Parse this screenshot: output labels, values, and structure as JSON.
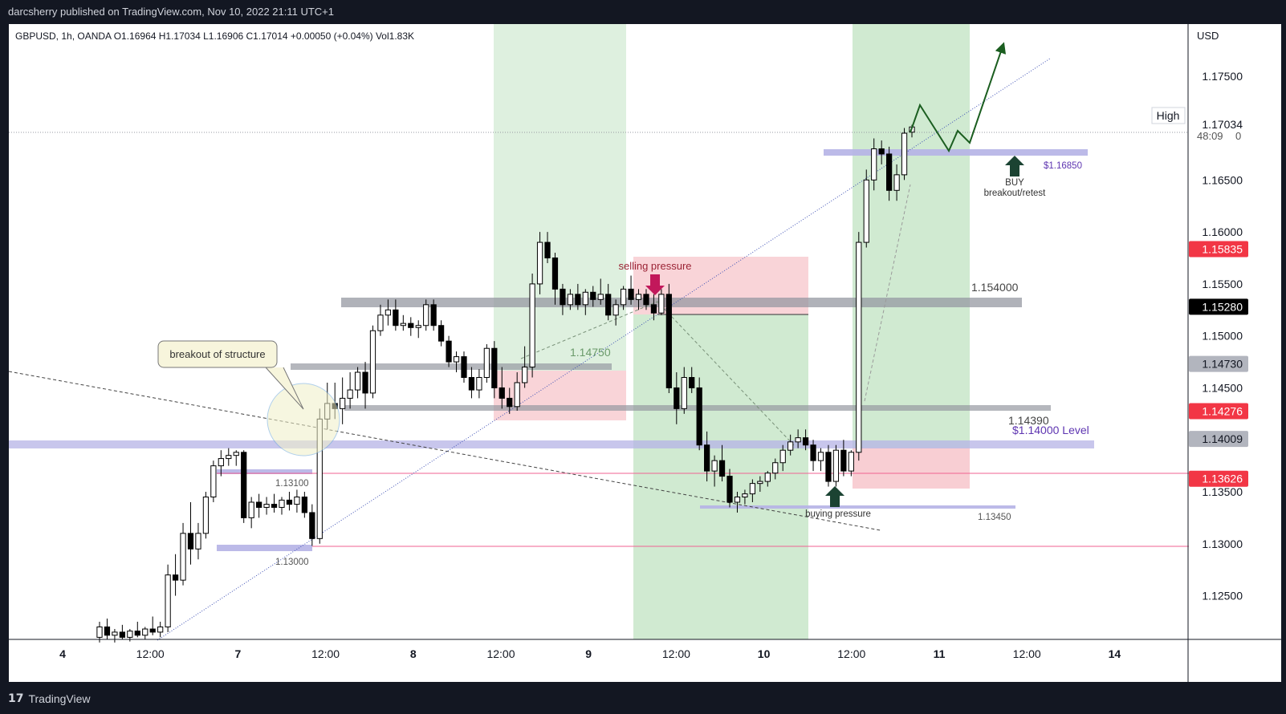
{
  "header": {
    "publisher_line": "darcsherry published on TradingView.com, Nov 10, 2022 21:11 UTC+1"
  },
  "footer": {
    "brand": "TradingView",
    "brand_mark": "17"
  },
  "symbol_info": "GBPUSD, 1h, OANDA  O1.16964  H1.17034  L1.16906  C1.17014  +0.00050 (+0.04%)  Vol1.83K",
  "axis_currency": "USD",
  "high_label": "High",
  "countdown": "48:09",
  "colors": {
    "bull": "#ffffff",
    "bear": "#000000",
    "price_red": "#f23645",
    "price_black": "#000000",
    "price_grey": "#b2b5be",
    "zone_green": "#c8e6c9",
    "zone_red": "#f7c9ce",
    "level_purple": "#b5b3e6",
    "level_grey": "#9598a1",
    "arrow": "#1b5e20"
  },
  "annotations": {
    "breakout": "breakout of structure",
    "selling": "selling pressure",
    "buying": "buying pressure",
    "buy": "BUY",
    "buy_sub": "breakout/retest",
    "lvl_1685": "$1.16850",
    "lvl_154": "1.154000",
    "lvl_1475": "1.14750",
    "lvl_1439": "1.14390",
    "lvl_1400": "$1.14000 Level",
    "lvl_1345": "1.13450",
    "lvl_1310": "1.13100",
    "lvl_1300": "1.13000"
  },
  "chart_data": {
    "type": "candlestick",
    "symbol": "GBPUSD",
    "timeframe": "1h",
    "ylim": [
      1.1208,
      1.18
    ],
    "x_ticks": [
      "4",
      "12:00",
      "7",
      "12:00",
      "8",
      "12:00",
      "9",
      "12:00",
      "10",
      "12:00",
      "11",
      "12:00",
      "14"
    ],
    "y_ticks": [
      "1.17500",
      "1.17034",
      "1.16500",
      "1.16000",
      "1.15835",
      "1.15500",
      "1.15280",
      "1.15000",
      "1.14730",
      "1.14500",
      "1.14276",
      "1.14009",
      "1.13626",
      "1.13500",
      "1.13000",
      "1.12500"
    ],
    "price_tags": [
      {
        "value": "1.17034",
        "style": "plain"
      },
      {
        "value": "1.15835",
        "style": "red"
      },
      {
        "value": "1.15280",
        "style": "black"
      },
      {
        "value": "1.14730",
        "style": "grey"
      },
      {
        "value": "1.14276",
        "style": "red"
      },
      {
        "value": "1.14009",
        "style": "grey"
      },
      {
        "value": "1.13626",
        "style": "red"
      }
    ],
    "levels": [
      1.1685,
      1.154,
      1.1475,
      1.1439,
      1.14,
      1.1345,
      1.131,
      1.13
    ],
    "candles": [
      [
        1.121,
        1.1225,
        1.1205,
        1.122
      ],
      [
        1.122,
        1.1228,
        1.1208,
        1.1212
      ],
      [
        1.1212,
        1.1218,
        1.1205,
        1.1215
      ],
      [
        1.1215,
        1.1222,
        1.1208,
        1.121
      ],
      [
        1.121,
        1.1218,
        1.1206,
        1.1216
      ],
      [
        1.1216,
        1.1225,
        1.121,
        1.1212
      ],
      [
        1.1212,
        1.122,
        1.1208,
        1.1218
      ],
      [
        1.1218,
        1.123,
        1.1212,
        1.1215
      ],
      [
        1.1215,
        1.1225,
        1.121,
        1.122
      ],
      [
        1.122,
        1.128,
        1.1215,
        1.127
      ],
      [
        1.127,
        1.129,
        1.125,
        1.1265
      ],
      [
        1.1265,
        1.132,
        1.126,
        1.131
      ],
      [
        1.131,
        1.134,
        1.128,
        1.1295
      ],
      [
        1.1295,
        1.132,
        1.1285,
        1.131
      ],
      [
        1.131,
        1.135,
        1.1305,
        1.1345
      ],
      [
        1.1345,
        1.138,
        1.134,
        1.1375
      ],
      [
        1.1375,
        1.139,
        1.1365,
        1.1382
      ],
      [
        1.1382,
        1.1392,
        1.1375,
        1.1385
      ],
      [
        1.1385,
        1.139,
        1.1375,
        1.1388
      ],
      [
        1.1388,
        1.139,
        1.132,
        1.1325
      ],
      [
        1.1325,
        1.1345,
        1.1315,
        1.134
      ],
      [
        1.134,
        1.1348,
        1.1325,
        1.1335
      ],
      [
        1.1335,
        1.1345,
        1.1328,
        1.1338
      ],
      [
        1.1338,
        1.1348,
        1.133,
        1.1335
      ],
      [
        1.1335,
        1.1345,
        1.1328,
        1.1342
      ],
      [
        1.1342,
        1.135,
        1.1332,
        1.1338
      ],
      [
        1.1338,
        1.1352,
        1.133,
        1.1345
      ],
      [
        1.1345,
        1.135,
        1.1325,
        1.133
      ],
      [
        1.133,
        1.1338,
        1.1298,
        1.1305
      ],
      [
        1.1305,
        1.143,
        1.13,
        1.142
      ],
      [
        1.142,
        1.1455,
        1.141,
        1.1435
      ],
      [
        1.1435,
        1.1455,
        1.142,
        1.143
      ],
      [
        1.143,
        1.146,
        1.1415,
        1.144
      ],
      [
        1.144,
        1.1465,
        1.143,
        1.1448
      ],
      [
        1.1448,
        1.147,
        1.144,
        1.1465
      ],
      [
        1.1465,
        1.1475,
        1.143,
        1.1445
      ],
      [
        1.1445,
        1.151,
        1.144,
        1.1505
      ],
      [
        1.1505,
        1.153,
        1.15,
        1.152
      ],
      [
        1.152,
        1.1535,
        1.151,
        1.1525
      ],
      [
        1.1525,
        1.1535,
        1.1505,
        1.151
      ],
      [
        1.151,
        1.152,
        1.1505,
        1.1512
      ],
      [
        1.1512,
        1.1518,
        1.15,
        1.1508
      ],
      [
        1.1508,
        1.1515,
        1.1498,
        1.151
      ],
      [
        1.151,
        1.1535,
        1.1505,
        1.153
      ],
      [
        1.153,
        1.1535,
        1.1505,
        1.151
      ],
      [
        1.151,
        1.1515,
        1.149,
        1.1495
      ],
      [
        1.1495,
        1.15,
        1.147,
        1.1475
      ],
      [
        1.1475,
        1.1485,
        1.1465,
        1.148
      ],
      [
        1.148,
        1.1485,
        1.1455,
        1.146
      ],
      [
        1.146,
        1.147,
        1.144,
        1.1448
      ],
      [
        1.1448,
        1.1468,
        1.144,
        1.146
      ],
      [
        1.146,
        1.1492,
        1.1455,
        1.1488
      ],
      [
        1.1488,
        1.1495,
        1.144,
        1.145
      ],
      [
        1.145,
        1.147,
        1.143,
        1.144
      ],
      [
        1.144,
        1.145,
        1.1425,
        1.1432
      ],
      [
        1.1432,
        1.1465,
        1.1428,
        1.1455
      ],
      [
        1.1455,
        1.149,
        1.145,
        1.147
      ],
      [
        1.147,
        1.156,
        1.146,
        1.155
      ],
      [
        1.155,
        1.16,
        1.154,
        1.159
      ],
      [
        1.159,
        1.16,
        1.157,
        1.1575
      ],
      [
        1.1575,
        1.158,
        1.153,
        1.1545
      ],
      [
        1.1545,
        1.155,
        1.152,
        1.153
      ],
      [
        1.153,
        1.1545,
        1.1525,
        1.154
      ],
      [
        1.154,
        1.155,
        1.1525,
        1.153
      ],
      [
        1.153,
        1.1545,
        1.152,
        1.1542
      ],
      [
        1.1542,
        1.1548,
        1.1528,
        1.1535
      ],
      [
        1.1535,
        1.1555,
        1.153,
        1.154
      ],
      [
        1.154,
        1.155,
        1.1515,
        1.152
      ],
      [
        1.152,
        1.1535,
        1.151,
        1.153
      ],
      [
        1.153,
        1.1548,
        1.1525,
        1.1545
      ],
      [
        1.1545,
        1.1558,
        1.153,
        1.1535
      ],
      [
        1.1535,
        1.1545,
        1.1525,
        1.154
      ],
      [
        1.154,
        1.1545,
        1.1525,
        1.153
      ],
      [
        1.153,
        1.154,
        1.1515,
        1.1522
      ],
      [
        1.1522,
        1.1545,
        1.152,
        1.154
      ],
      [
        1.154,
        1.155,
        1.1445,
        1.145
      ],
      [
        1.145,
        1.1465,
        1.1415,
        1.143
      ],
      [
        1.143,
        1.147,
        1.1425,
        1.146
      ],
      [
        1.146,
        1.147,
        1.1445,
        1.145
      ],
      [
        1.145,
        1.146,
        1.139,
        1.1395
      ],
      [
        1.1395,
        1.1408,
        1.136,
        1.137
      ],
      [
        1.137,
        1.1385,
        1.1355,
        1.138
      ],
      [
        1.138,
        1.1395,
        1.136,
        1.1365
      ],
      [
        1.1365,
        1.1372,
        1.1335,
        1.134
      ],
      [
        1.134,
        1.135,
        1.133,
        1.1345
      ],
      [
        1.1345,
        1.1352,
        1.1338,
        1.1348
      ],
      [
        1.1348,
        1.1362,
        1.134,
        1.1358
      ],
      [
        1.1358,
        1.1365,
        1.135,
        1.136
      ],
      [
        1.136,
        1.137,
        1.1355,
        1.1368
      ],
      [
        1.1368,
        1.1382,
        1.1362,
        1.1378
      ],
      [
        1.1378,
        1.1395,
        1.137,
        1.139
      ],
      [
        1.139,
        1.1405,
        1.1385,
        1.1398
      ],
      [
        1.1398,
        1.141,
        1.1392,
        1.1402
      ],
      [
        1.1402,
        1.141,
        1.139,
        1.1395
      ],
      [
        1.1395,
        1.14,
        1.137,
        1.138
      ],
      [
        1.138,
        1.1392,
        1.137,
        1.1388
      ],
      [
        1.1388,
        1.1395,
        1.1355,
        1.136
      ],
      [
        1.136,
        1.1395,
        1.1355,
        1.139
      ],
      [
        1.139,
        1.14,
        1.1365,
        1.137
      ],
      [
        1.137,
        1.139,
        1.1365,
        1.1388
      ],
      [
        1.1388,
        1.16,
        1.138,
        1.159
      ],
      [
        1.159,
        1.166,
        1.1585,
        1.165
      ],
      [
        1.165,
        1.169,
        1.164,
        1.168
      ],
      [
        1.168,
        1.1688,
        1.1665,
        1.1675
      ],
      [
        1.1675,
        1.1682,
        1.163,
        1.164
      ],
      [
        1.164,
        1.1665,
        1.163,
        1.1655
      ],
      [
        1.1655,
        1.17,
        1.165,
        1.1695
      ],
      [
        1.1696,
        1.1703,
        1.1691,
        1.1701
      ]
    ]
  }
}
